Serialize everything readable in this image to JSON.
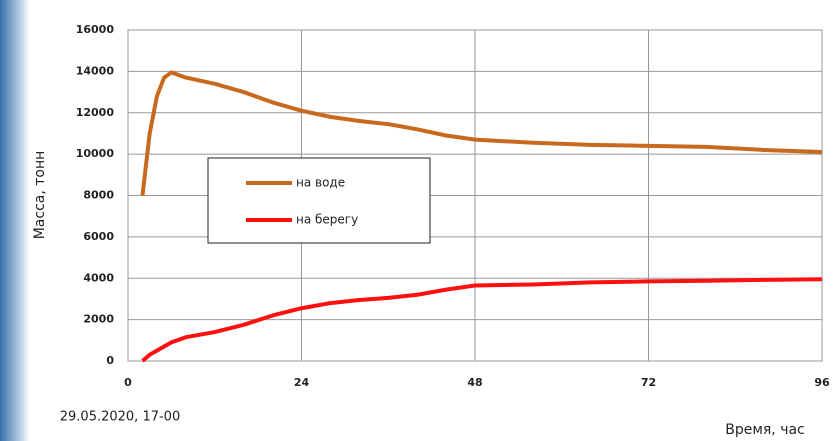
{
  "chart_data": {
    "type": "line",
    "ylabel": "Масса, тонн",
    "xlabel": "Время, час",
    "annotation": "29.05.2020, 17-00",
    "x": [
      2,
      3,
      4,
      5,
      6,
      8,
      12,
      16,
      20,
      24,
      28,
      32,
      36,
      40,
      44,
      48,
      56,
      64,
      72,
      80,
      88,
      96
    ],
    "series": [
      {
        "name": "на воде",
        "color": "#c8691e",
        "values": [
          8000,
          11000,
          12800,
          13700,
          13950,
          13700,
          13400,
          13000,
          12500,
          12100,
          11800,
          11600,
          11450,
          11200,
          10900,
          10700,
          10550,
          10450,
          10400,
          10350,
          10200,
          10100
        ]
      },
      {
        "name": "на берегу",
        "color": "#ff1010",
        "values": [
          0,
          300,
          500,
          700,
          900,
          1150,
          1400,
          1750,
          2200,
          2550,
          2800,
          2950,
          3050,
          3200,
          3450,
          3650,
          3700,
          3800,
          3850,
          3880,
          3920,
          3950
        ]
      }
    ],
    "xlim": [
      0,
      96
    ],
    "xticks": [
      0,
      24,
      48,
      72,
      96
    ],
    "ylim": [
      0,
      16000
    ],
    "yticks": [
      0,
      2000,
      4000,
      6000,
      8000,
      10000,
      12000,
      14000,
      16000
    ],
    "grid": true
  }
}
